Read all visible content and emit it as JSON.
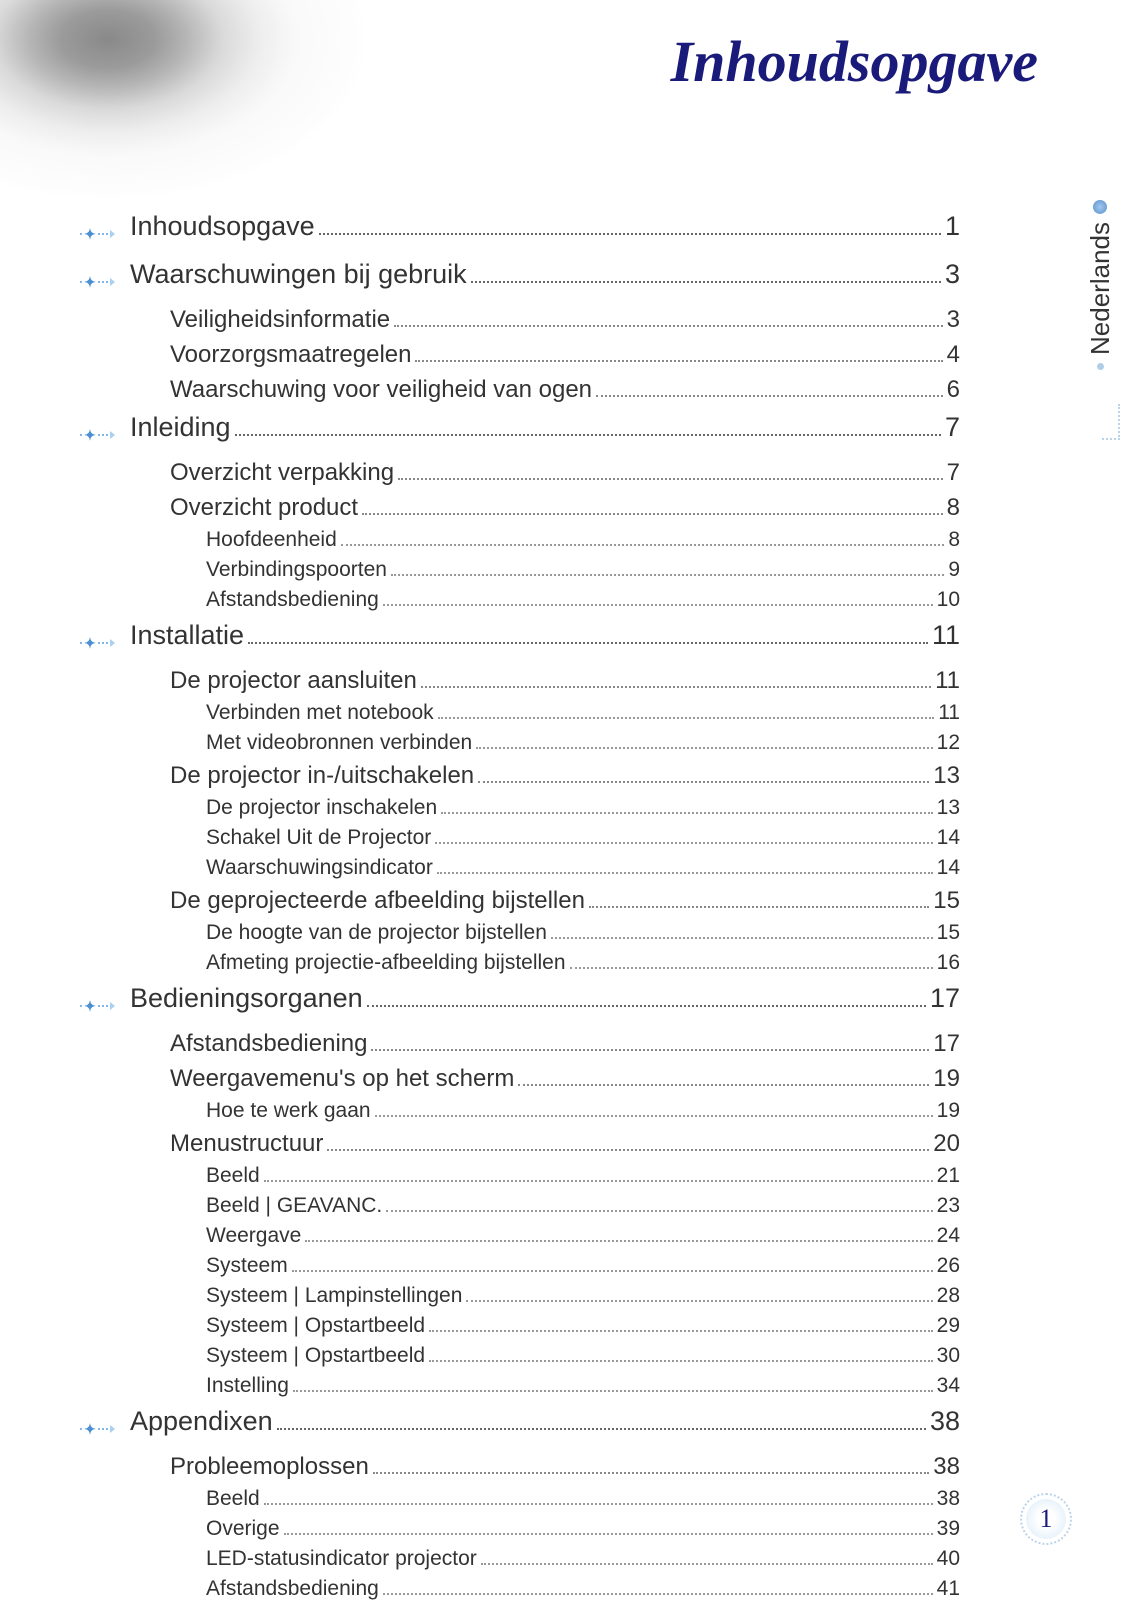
{
  "page_title": "Inhoudsopgave",
  "side_label": "Nederlands",
  "page_number": "1",
  "colors": {
    "title_color": "#1a1a7a",
    "accent_blue": "#4a90d0",
    "dot_light": "#a8d0f0",
    "text_color": "#333333",
    "leader_dot": "#888888"
  },
  "typography": {
    "title_font": "Times New Roman italic bold",
    "title_size_pt": 44,
    "body_font": "Arial",
    "lvl1_size_pt": 20,
    "lvl2_size_pt": 18,
    "lvl3_size_pt": 16
  },
  "toc": [
    {
      "level": 1,
      "label": "Inhoudsopgave",
      "page": "1"
    },
    {
      "level": 1,
      "label": "Waarschuwingen bij gebruik",
      "page": "3"
    },
    {
      "level": 2,
      "label": "Veiligheidsinformatie",
      "page": "3"
    },
    {
      "level": 2,
      "label": "Voorzorgsmaatregelen",
      "page": "4"
    },
    {
      "level": 2,
      "label": "Waarschuwing voor veiligheid van ogen",
      "page": "6"
    },
    {
      "level": 1,
      "label": "Inleiding",
      "page": "7"
    },
    {
      "level": 2,
      "label": "Overzicht verpakking",
      "page": "7"
    },
    {
      "level": 2,
      "label": "Overzicht product",
      "page": "8"
    },
    {
      "level": 3,
      "label": "Hoofdeenheid",
      "page": "8"
    },
    {
      "level": 3,
      "label": "Verbindingspoorten",
      "page": "9"
    },
    {
      "level": 3,
      "label": "Afstandsbediening",
      "page": "10"
    },
    {
      "level": 1,
      "label": "Installatie",
      "page": "11"
    },
    {
      "level": 2,
      "label": "De projector aansluiten",
      "page": "11"
    },
    {
      "level": 3,
      "label": "Verbinden met notebook",
      "page": "11"
    },
    {
      "level": 3,
      "label": "Met videobronnen verbinden",
      "page": "12"
    },
    {
      "level": 2,
      "label": "De projector in-/uitschakelen",
      "page": "13"
    },
    {
      "level": 3,
      "label": "De projector inschakelen",
      "page": "13"
    },
    {
      "level": 3,
      "label": "Schakel Uit de Projector",
      "page": "14"
    },
    {
      "level": 3,
      "label": "Waarschuwingsindicator",
      "page": "14"
    },
    {
      "level": 2,
      "label": "De geprojecteerde afbeelding bijstellen",
      "page": "15"
    },
    {
      "level": 3,
      "label": "De hoogte van de projector bijstellen",
      "page": "15"
    },
    {
      "level": 3,
      "label": "Afmeting projectie-afbeelding bijstellen",
      "page": "16"
    },
    {
      "level": 1,
      "label": "Bedieningsorganen",
      "page": "17"
    },
    {
      "level": 2,
      "label": "Afstandsbediening",
      "page": "17"
    },
    {
      "level": 2,
      "label": "Weergavemenu's op het scherm",
      "page": "19"
    },
    {
      "level": 3,
      "label": "Hoe te werk gaan",
      "page": "19"
    },
    {
      "level": 2,
      "label": "Menustructuur",
      "page": "20"
    },
    {
      "level": 3,
      "label": "Beeld",
      "page": "21"
    },
    {
      "level": 3,
      "label": "Beeld | GEAVANC.",
      "page": "23"
    },
    {
      "level": 3,
      "label": "Weergave",
      "page": "24"
    },
    {
      "level": 3,
      "label": "Systeem",
      "page": "26"
    },
    {
      "level": 3,
      "label": "Systeem | Lampinstellingen",
      "page": "28"
    },
    {
      "level": 3,
      "label": "Systeem | Opstartbeeld",
      "page": "29"
    },
    {
      "level": 3,
      "label": "Systeem | Opstartbeeld",
      "page": "30"
    },
    {
      "level": 3,
      "label": "Instelling",
      "page": "34"
    },
    {
      "level": 1,
      "label": "Appendixen",
      "page": "38"
    },
    {
      "level": 2,
      "label": "Probleemoplossen",
      "page": "38"
    },
    {
      "level": 3,
      "label": "Beeld",
      "page": "38"
    },
    {
      "level": 3,
      "label": "Overige",
      "page": "39"
    },
    {
      "level": 3,
      "label": "LED-statusindicator projector",
      "page": "40"
    },
    {
      "level": 3,
      "label": "Afstandsbediening",
      "page": "41"
    }
  ]
}
